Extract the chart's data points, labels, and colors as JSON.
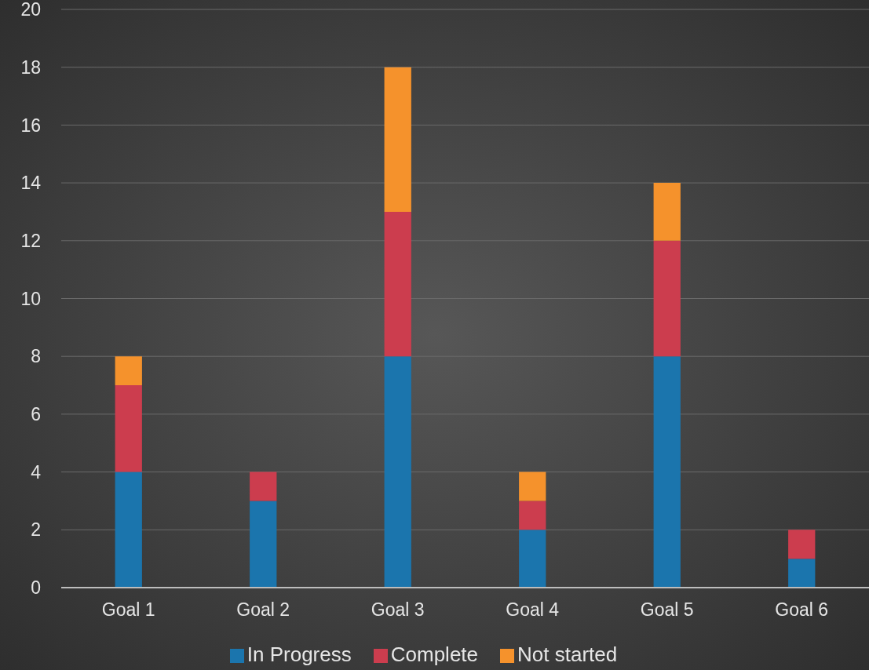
{
  "chart_data": {
    "type": "bar",
    "stacked": true,
    "categories": [
      "Goal 1",
      "Goal 2",
      "Goal 3",
      "Goal 4",
      "Goal 5",
      "Goal 6"
    ],
    "series": [
      {
        "name": "In Progress",
        "color": "#1b75ad",
        "values": [
          4,
          3,
          8,
          2,
          8,
          1
        ]
      },
      {
        "name": "Complete",
        "color": "#cc3d4e",
        "values": [
          3,
          1,
          5,
          1,
          4,
          1
        ]
      },
      {
        "name": "Not started",
        "color": "#f5922c",
        "values": [
          1,
          0,
          5,
          1,
          2,
          0
        ]
      }
    ],
    "ylim": [
      0,
      20
    ],
    "yticks": [
      0,
      2,
      4,
      6,
      8,
      10,
      12,
      14,
      16,
      18,
      20
    ],
    "grid": "y",
    "legend": "bottom"
  }
}
